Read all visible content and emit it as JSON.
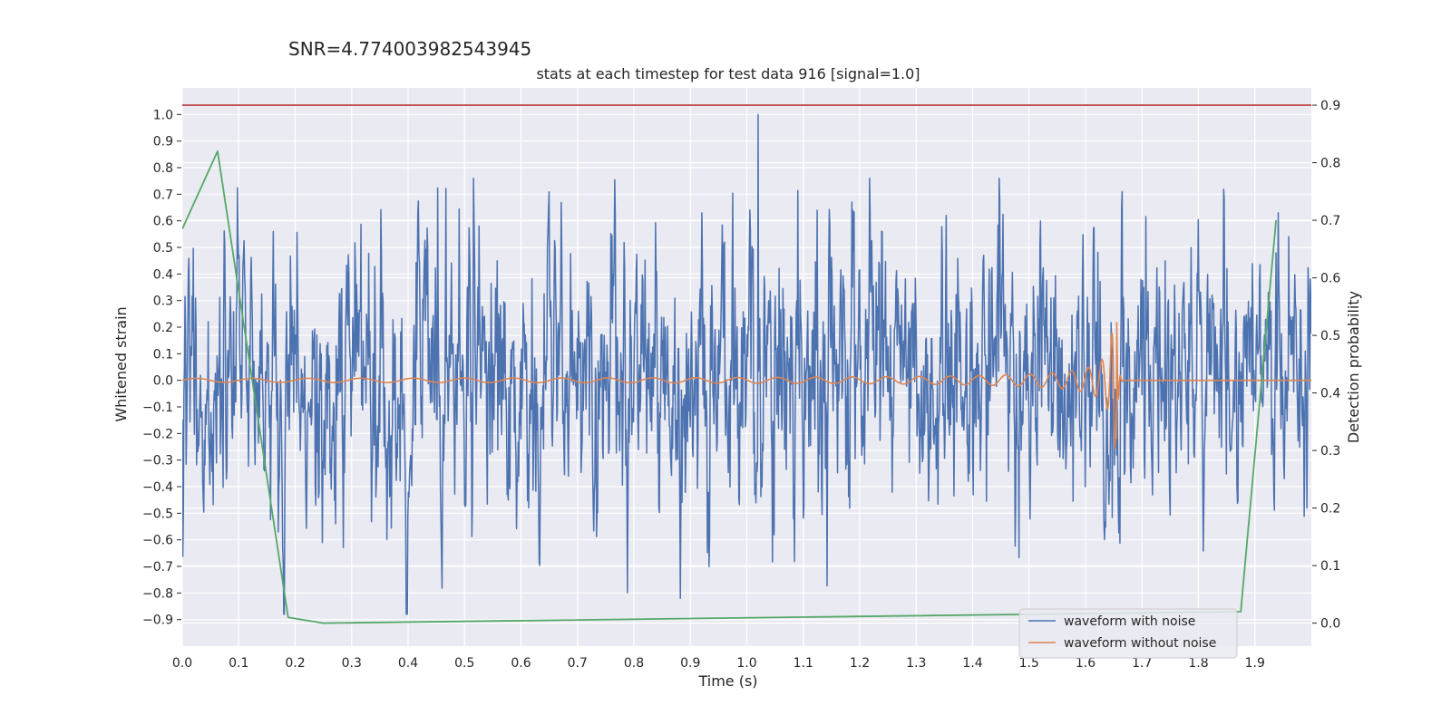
{
  "chart_data": {
    "type": "line",
    "suptitle": "SNR=4.774003982543945",
    "title": "stats at each timestep for test data 916 [signal=1.0]",
    "xlabel": "Time (s)",
    "ylabel": "Whitened strain",
    "y2label": "Detection probability",
    "xlim": [
      0.0,
      2.0
    ],
    "ylim": [
      -1.0,
      1.1
    ],
    "y2lim": [
      -0.04,
      0.93
    ],
    "xticks": [
      "0.0",
      "0.1",
      "0.2",
      "0.3",
      "0.4",
      "0.5",
      "0.6",
      "0.7",
      "0.8",
      "0.9",
      "1.0",
      "1.1",
      "1.2",
      "1.3",
      "1.4",
      "1.5",
      "1.6",
      "1.7",
      "1.8",
      "1.9"
    ],
    "yticks": [
      "1.0",
      "0.9",
      "0.8",
      "0.7",
      "0.6",
      "0.5",
      "0.4",
      "0.3",
      "0.2",
      "0.1",
      "0.0",
      "−0.1",
      "−0.2",
      "−0.3",
      "−0.4",
      "−0.5",
      "−0.6",
      "−0.7",
      "−0.8",
      "−0.9"
    ],
    "y2ticks": [
      "0.9",
      "0.8",
      "0.7",
      "0.6",
      "0.5",
      "0.4",
      "0.3",
      "0.2",
      "0.1",
      "0.0"
    ],
    "grid": true,
    "legend_position": "lower-right",
    "colors": {
      "background": "#eaeaf2",
      "grid": "#ffffff",
      "noisy": "#4c72b0",
      "clean": "#dd8452",
      "probability": "#55a868",
      "threshold": "#c44e52"
    },
    "series": [
      {
        "name": "waveform with noise",
        "axis": "left",
        "kind": "noise",
        "x_range": [
          0.0,
          2.0
        ],
        "samples": 2048,
        "std": 0.22,
        "peak": {
          "x": 1.02,
          "y": 1.0
        }
      },
      {
        "name": "waveform without noise",
        "axis": "left",
        "kind": "chirp",
        "merger_x": 1.655,
        "end_amplitude": 0.26
      },
      {
        "name": "detection probability",
        "axis": "right",
        "x": [
          0.0,
          0.0625,
          0.1875,
          0.25,
          1.875,
          1.9375
        ],
        "values": [
          0.685,
          0.82,
          0.01,
          0.0,
          0.02,
          0.7
        ]
      },
      {
        "name": "threshold",
        "axis": "right",
        "x": [
          0.0,
          2.0
        ],
        "values": [
          0.9,
          0.9
        ]
      }
    ],
    "legend": [
      "waveform with noise",
      "waveform without noise"
    ]
  }
}
